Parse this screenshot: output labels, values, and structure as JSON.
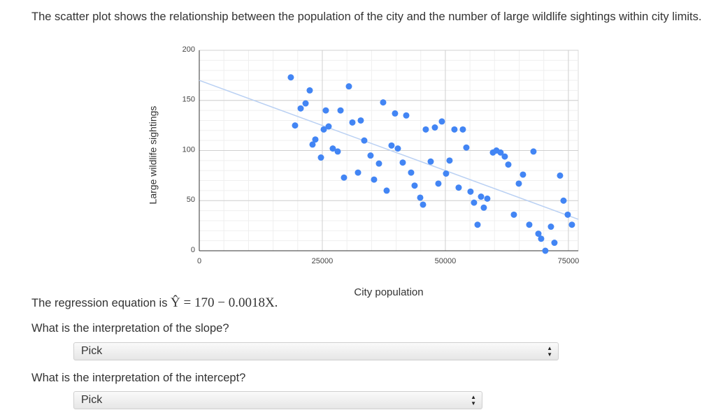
{
  "question": {
    "intro": "The scatter plot shows the relationship between the population of the city and the number of large wildlife sightings within city limits.",
    "equation_prefix": "The regression equation is",
    "equation": "Ŷ = 170 − 0.0018X.",
    "slope_question": "What is the interpretation of the slope?",
    "slope_select": "Pick",
    "intercept_question": "What is the interpretation of the intercept?",
    "intercept_select": "Pick"
  },
  "chart_data": {
    "type": "scatter",
    "xlabel": "City population",
    "ylabel": "Large wildlife sightings",
    "color": "#4285f4",
    "grid": true,
    "xlim": [
      0,
      77000
    ],
    "xticks": [
      0,
      25000,
      50000,
      75000
    ],
    "ylim": [
      0,
      200
    ],
    "yticks": [
      0,
      50,
      100,
      150,
      200
    ],
    "trendline": {
      "intercept": 170,
      "slope": -0.0018,
      "color": "#b9d0f3"
    },
    "x": [
      18600,
      19460,
      20600,
      21600,
      22440,
      23010,
      23580,
      24720,
      25290,
      26280,
      25710,
      27130,
      28130,
      28700,
      29400,
      30400,
      31110,
      32250,
      32810,
      33520,
      34800,
      35510,
      36510,
      37360,
      38070,
      39060,
      39770,
      40340,
      41340,
      42050,
      43040,
      43750,
      44890,
      45460,
      46020,
      47020,
      47870,
      48580,
      49290,
      50140,
      50850,
      51840,
      52700,
      53550,
      54260,
      55110,
      55820,
      56540,
      57250,
      57810,
      58520,
      59660,
      60370,
      61220,
      62070,
      62790,
      63920,
      64920,
      65770,
      67050,
      67900,
      68900,
      69460,
      70310,
      71450,
      72160,
      73300,
      74010,
      74860,
      75710
    ],
    "values": [
      173,
      125,
      142,
      147,
      160,
      106,
      111,
      93,
      121,
      124,
      140,
      102,
      99,
      140,
      73,
      164,
      128,
      78,
      130,
      110,
      95,
      71,
      87,
      148,
      60,
      105,
      137,
      102,
      88,
      135,
      78,
      65,
      53,
      46,
      121,
      89,
      123,
      67,
      129,
      77,
      90,
      121,
      63,
      121,
      103,
      59,
      48,
      26,
      54,
      43,
      52,
      98,
      100,
      98,
      94,
      86,
      36,
      67,
      76,
      26,
      99,
      17,
      12,
      0,
      24,
      8,
      75,
      50,
      36,
      26
    ]
  }
}
